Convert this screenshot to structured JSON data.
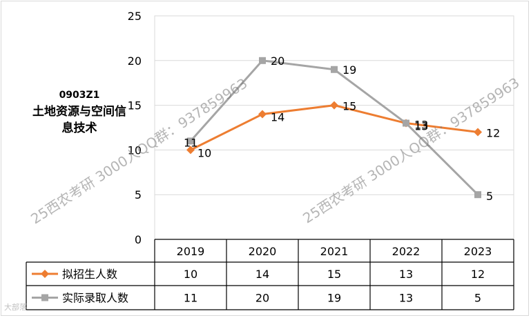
{
  "chart_data": {
    "type": "line",
    "code": "0903Z1",
    "name": "土地资源与空间信息技术",
    "categories": [
      "2019",
      "2020",
      "2021",
      "2022",
      "2023"
    ],
    "ylim": [
      0,
      25
    ],
    "yticks": [
      0,
      5,
      10,
      15,
      20,
      25
    ],
    "grid": true,
    "legend": "data-table",
    "series": [
      {
        "name": "拟招生人数",
        "values": [
          10,
          14,
          15,
          13,
          12
        ],
        "color": "#ed7d31",
        "marker": "diamond"
      },
      {
        "name": "实际录取人数",
        "values": [
          11,
          20,
          19,
          13,
          5
        ],
        "color": "#a5a5a5",
        "marker": "square"
      }
    ]
  },
  "watermarks": [
    "25西农考研 3000人QQ群：937859963",
    "25西农考研 3000人QQ群：937859963"
  ],
  "corner_mark": "大部落"
}
